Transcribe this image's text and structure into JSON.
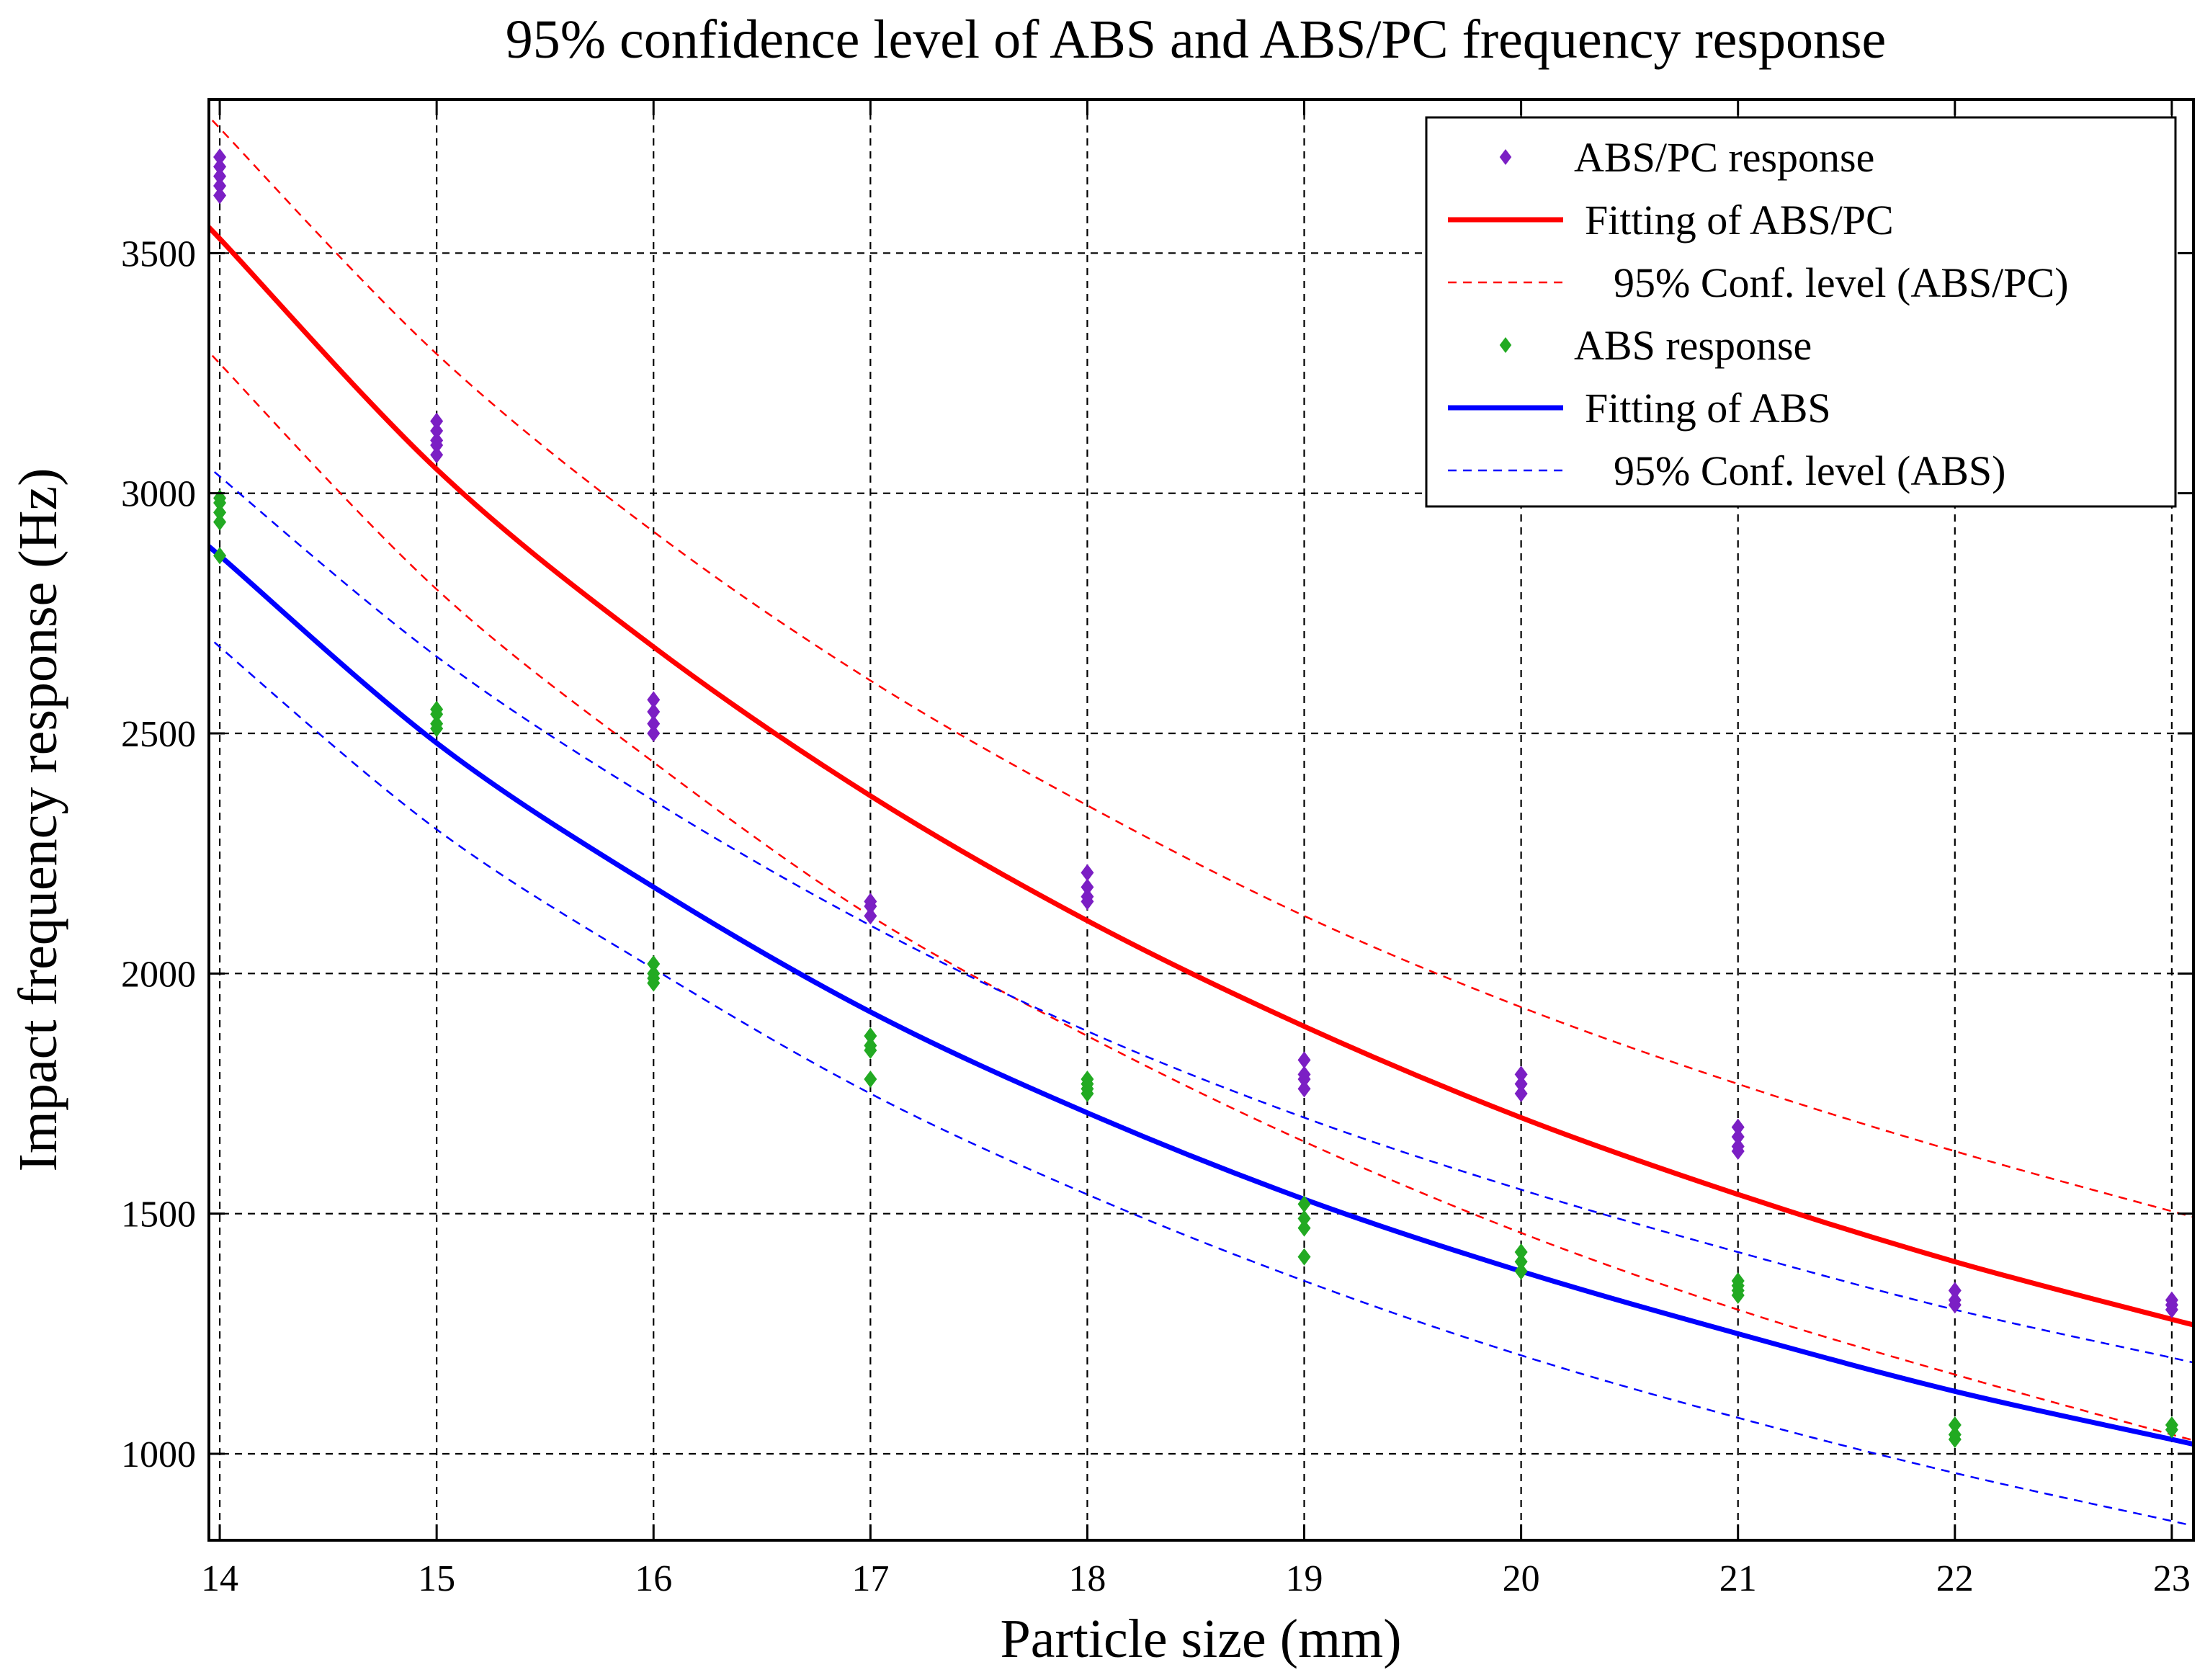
{
  "chart_data": {
    "type": "scatter",
    "title": "95% confidence level of ABS and ABS/PC frequency response",
    "xlabel": "Particle size (mm)",
    "ylabel": "Impact frequency response (Hz)",
    "xlim": [
      13.95,
      23.1
    ],
    "ylim": [
      820,
      3820
    ],
    "xticks": [
      14,
      15,
      16,
      17,
      18,
      19,
      20,
      21,
      22,
      23
    ],
    "yticks": [
      1000,
      1500,
      2000,
      2500,
      3000,
      3500
    ],
    "grid": true,
    "legend_position": "top-right",
    "colors": {
      "abspc_points": "#7b1fc4",
      "abspc_fit": "#ff0000",
      "abs_points": "#22aa22",
      "abs_fit": "#0000ff"
    },
    "legend": [
      {
        "label": "ABS/PC response",
        "style": "marker",
        "color": "#7b1fc4"
      },
      {
        "label": "Fitting of ABS/PC",
        "style": "solid",
        "color": "#ff0000"
      },
      {
        "label": "95% Conf. level (ABS/PC)",
        "style": "dashed",
        "color": "#ff0000"
      },
      {
        "label": "ABS response",
        "style": "marker",
        "color": "#22aa22"
      },
      {
        "label": "Fitting of ABS",
        "style": "solid",
        "color": "#0000ff"
      },
      {
        "label": "95% Conf. level (ABS)",
        "style": "dashed",
        "color": "#0000ff"
      }
    ],
    "series": [
      {
        "name": "ABS/PC response",
        "kind": "points",
        "color": "#7b1fc4",
        "x": [
          14,
          14,
          14,
          14,
          14,
          15,
          15,
          15,
          15,
          15,
          16,
          16,
          16,
          16,
          17,
          17,
          17,
          18,
          18,
          18,
          18,
          19,
          19,
          19,
          19,
          20,
          20,
          20,
          21,
          21,
          21,
          21,
          22,
          22,
          22,
          23,
          23,
          23
        ],
        "y": [
          3640,
          3660,
          3680,
          3700,
          3620,
          3080,
          3110,
          3130,
          3150,
          3100,
          2520,
          2545,
          2570,
          2500,
          2120,
          2140,
          2150,
          2160,
          2180,
          2210,
          2150,
          1760,
          1790,
          1820,
          1780,
          1750,
          1770,
          1790,
          1640,
          1660,
          1680,
          1630,
          1320,
          1340,
          1310,
          1310,
          1320,
          1300
        ]
      },
      {
        "name": "ABS response",
        "kind": "points",
        "color": "#22aa22",
        "x": [
          14,
          14,
          14,
          14,
          14,
          15,
          15,
          15,
          15,
          16,
          16,
          16,
          16,
          17,
          17,
          17,
          17,
          18,
          18,
          18,
          18,
          19,
          19,
          19,
          19,
          20,
          20,
          20,
          21,
          21,
          21,
          21,
          22,
          22,
          22,
          23,
          23
        ],
        "y": [
          2940,
          2960,
          2980,
          2990,
          2870,
          2520,
          2540,
          2550,
          2510,
          1990,
          2000,
          2020,
          1980,
          1840,
          1850,
          1870,
          1780,
          1750,
          1760,
          1780,
          1770,
          1470,
          1490,
          1520,
          1410,
          1400,
          1420,
          1380,
          1330,
          1340,
          1360,
          1350,
          1030,
          1040,
          1060,
          1050,
          1060
        ]
      },
      {
        "name": "Fitting of ABS/PC",
        "kind": "line",
        "color": "#ff0000",
        "x": [
          13.95,
          14,
          15,
          16,
          17,
          18,
          19,
          20,
          21,
          22,
          23,
          23.1
        ],
        "y": [
          3548,
          3530,
          3050,
          2680,
          2370,
          2110,
          1890,
          1700,
          1540,
          1400,
          1280,
          1270
        ]
      },
      {
        "name": "95% Conf. level (ABS/PC) upper",
        "kind": "dashed",
        "color": "#ff0000",
        "x": [
          13.95,
          14,
          15,
          16,
          17,
          18,
          19,
          20,
          21,
          22,
          23,
          23.1
        ],
        "y": [
          3790,
          3760,
          3290,
          2920,
          2610,
          2350,
          2120,
          1930,
          1770,
          1630,
          1505,
          1495
        ]
      },
      {
        "name": "95% Conf. level (ABS/PC) lower",
        "kind": "dashed",
        "color": "#ff0000",
        "x": [
          13.95,
          14,
          15,
          16,
          17,
          18,
          19,
          20,
          21,
          22,
          23,
          23.1
        ],
        "y": [
          3305,
          3270,
          2800,
          2440,
          2120,
          1870,
          1650,
          1460,
          1300,
          1165,
          1040,
          1030
        ]
      },
      {
        "name": "Fitting of ABS",
        "kind": "line",
        "color": "#0000ff",
        "x": [
          13.95,
          14,
          15,
          16,
          17,
          18,
          19,
          20,
          21,
          22,
          23,
          23.1
        ],
        "y": [
          2885,
          2870,
          2480,
          2180,
          1920,
          1710,
          1530,
          1380,
          1250,
          1130,
          1030,
          1020
        ]
      },
      {
        "name": "95% Conf. level (ABS) upper",
        "kind": "dashed",
        "color": "#0000ff",
        "x": [
          13.95,
          14,
          15,
          16,
          17,
          18,
          19,
          20,
          21,
          22,
          23,
          23.1
        ],
        "y": [
          3065,
          3035,
          2660,
          2360,
          2100,
          1880,
          1700,
          1550,
          1420,
          1300,
          1200,
          1190
        ]
      },
      {
        "name": "95% Conf. level (ABS) lower",
        "kind": "dashed",
        "color": "#0000ff",
        "x": [
          13.95,
          14,
          15,
          16,
          17,
          18,
          19,
          20,
          21,
          22,
          23,
          23.1
        ],
        "y": [
          2710,
          2680,
          2300,
          2010,
          1750,
          1540,
          1360,
          1205,
          1075,
          960,
          860,
          850
        ]
      }
    ]
  }
}
